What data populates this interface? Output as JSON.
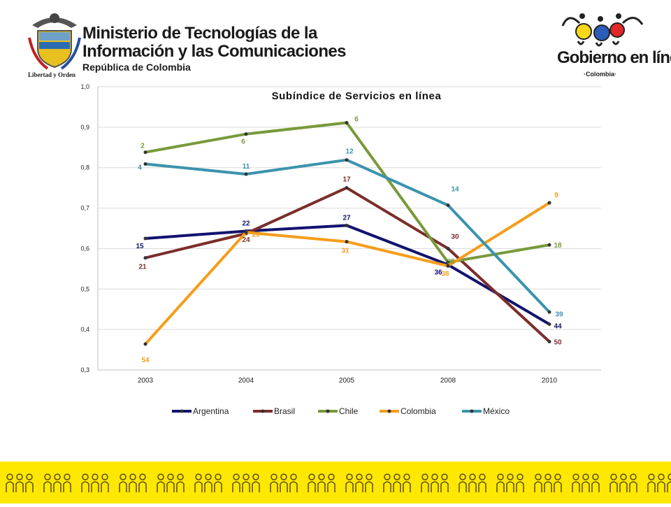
{
  "header": {
    "ministry_line1": "Ministerio de Tecnologías de la",
    "ministry_line2": "Información y las Comunicaciones",
    "ministry_line3": "República de Colombia",
    "motto": "Libertad y Orden",
    "gov_line1": "Gobierno en línea",
    "gov_line2": "·Colombia·"
  },
  "colors": {
    "Argentina": "#12136e",
    "Brasil": "#7b2d2a",
    "Chile": "#789a3a",
    "Colombia": "#f59d1c",
    "México": "#3a93ad",
    "band": "#ffe800"
  },
  "chart_data": {
    "type": "line",
    "title": "Subíndice de Servicios en línea",
    "categories": [
      "2003",
      "2004",
      "2005",
      "2008",
      "2010"
    ],
    "ylim": [
      0.3,
      1.0
    ],
    "yticks": [
      "0,3",
      "0,4",
      "0,5",
      "0,6",
      "0,7",
      "0,8",
      "0,9",
      "1,0"
    ],
    "grid": true,
    "legend": "bottom",
    "series": [
      {
        "name": "Argentina",
        "values": [
          0.625,
          0.643,
          0.657,
          0.56,
          0.413
        ],
        "labels": [
          "15",
          "22",
          "27",
          "36",
          "44"
        ]
      },
      {
        "name": "Brasil",
        "values": [
          0.577,
          0.637,
          0.75,
          0.6,
          0.37
        ],
        "labels": [
          "21",
          "24",
          "17",
          "30",
          "50"
        ]
      },
      {
        "name": "Chile",
        "values": [
          0.838,
          0.883,
          0.911,
          0.566,
          0.609
        ],
        "labels": [
          "2",
          "6",
          "6",
          "35",
          "18"
        ]
      },
      {
        "name": "Colombia",
        "values": [
          0.364,
          0.64,
          0.617,
          0.557,
          0.713
        ],
        "labels": [
          "54",
          "23",
          "31",
          "38",
          "9"
        ]
      },
      {
        "name": "México",
        "values": [
          0.809,
          0.784,
          0.819,
          0.707,
          0.443
        ],
        "labels": [
          "4",
          "11",
          "12",
          "14",
          "39"
        ]
      }
    ]
  }
}
